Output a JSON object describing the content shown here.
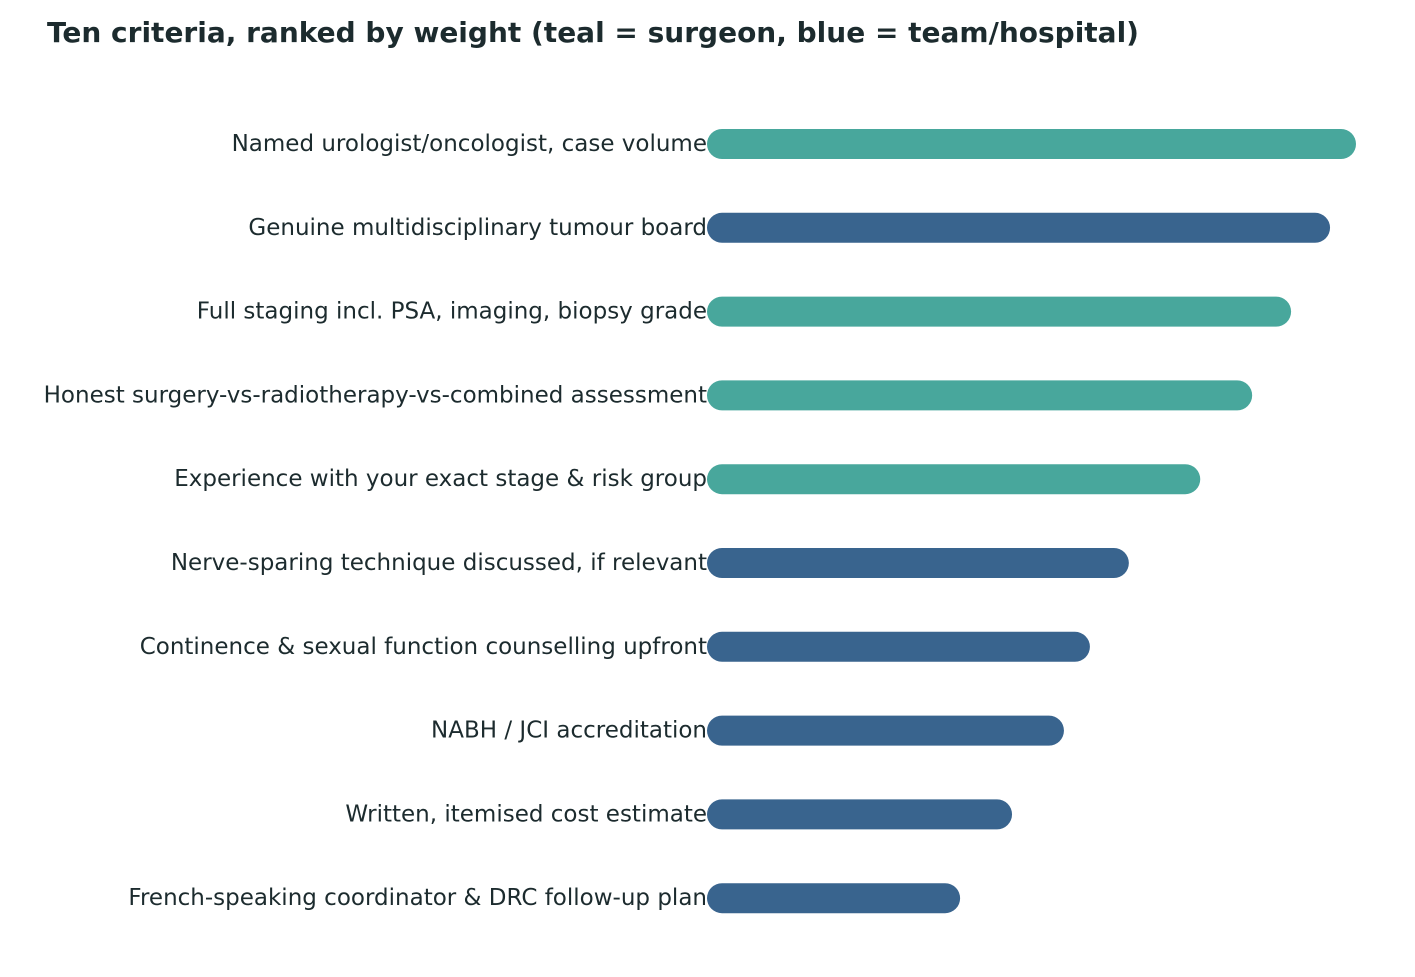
{
  "chart_data": {
    "type": "bar",
    "orientation": "horizontal",
    "title": "Ten criteria, ranked by weight (teal = surgeon, blue = team/hospital)",
    "xlabel": "",
    "ylabel": "",
    "xlim": [
      0,
      100
    ],
    "grid": false,
    "legend": "none",
    "categories": [
      "Named urologist/oncologist, case volume",
      "Genuine multidisciplinary tumour board",
      "Full staging incl. PSA, imaging, biopsy grade",
      "Honest surgery-vs-radiotherapy-vs-combined assessment",
      "Experience with your exact stage & risk group",
      "Nerve-sparing technique discussed, if relevant",
      "Continence & sexual function counselling upfront",
      "NABH / JCI accreditation",
      "Written, itemised cost estimate",
      "French-speaking coordinator & DRC follow-up plan"
    ],
    "values": [
      100,
      96,
      90,
      84,
      76,
      65,
      59,
      55,
      47,
      39
    ],
    "groups": [
      "surgeon",
      "team",
      "surgeon",
      "surgeon",
      "surgeon",
      "team",
      "team",
      "team",
      "team",
      "team"
    ],
    "colors": {
      "surgeon": "#48a79c",
      "team": "#39648e"
    }
  }
}
